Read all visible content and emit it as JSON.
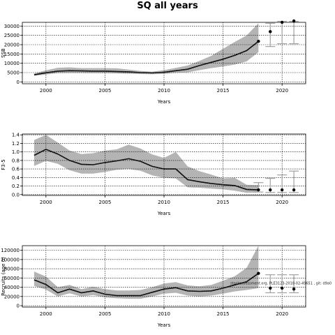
{
  "title": "SQ all years",
  "chart_data": [
    {
      "type": "line",
      "ylabel": "SSB",
      "xlabel": "Years",
      "xlim": [
        1998,
        2022
      ],
      "ylim": [
        -1000,
        32000
      ],
      "xticks": [
        2000,
        2005,
        2010,
        2015,
        2020
      ],
      "yticks": [
        0,
        5000,
        10000,
        15000,
        20000,
        25000,
        30000
      ],
      "grid": true,
      "series": [
        {
          "role": "median",
          "x": [
            1999,
            2000,
            2001,
            2002,
            2003,
            2004,
            2005,
            2006,
            2007,
            2008,
            2009,
            2010,
            2011,
            2012,
            2013,
            2014,
            2015,
            2016,
            2017,
            2018
          ],
          "values": [
            3800,
            4900,
            5800,
            6000,
            5900,
            5800,
            5800,
            5600,
            5400,
            5000,
            4800,
            5200,
            6000,
            6800,
            8800,
            10500,
            12200,
            14300,
            16800,
            21800
          ]
        },
        {
          "role": "ci_upper",
          "x": [
            1999,
            2000,
            2001,
            2002,
            2003,
            2004,
            2005,
            2006,
            2007,
            2008,
            2009,
            2010,
            2011,
            2012,
            2013,
            2014,
            2015,
            2016,
            2017,
            2018
          ],
          "values": [
            4500,
            6200,
            7600,
            7800,
            7400,
            7400,
            7400,
            7300,
            6600,
            5900,
            5500,
            6300,
            7500,
            8800,
            11300,
            14000,
            17800,
            21500,
            25000,
            31500
          ]
        },
        {
          "role": "ci_lower",
          "x": [
            1999,
            2000,
            2001,
            2002,
            2003,
            2004,
            2005,
            2006,
            2007,
            2008,
            2009,
            2010,
            2011,
            2012,
            2013,
            2014,
            2015,
            2016,
            2017,
            2018
          ],
          "values": [
            3300,
            4000,
            4700,
            4800,
            4800,
            4700,
            4700,
            4600,
            4400,
            4200,
            4100,
            4300,
            4900,
            5100,
            6300,
            7400,
            8300,
            9300,
            11000,
            16000
          ]
        }
      ],
      "points": [
        {
          "x": 2018,
          "y": 21800
        },
        {
          "x": 2019,
          "y": 27000,
          "low": 19000,
          "high": 31500
        },
        {
          "x": 2020,
          "y": 32000,
          "low": 20500,
          "high": 32500
        },
        {
          "x": 2021,
          "y": 33000,
          "low": 20500,
          "high": 32500
        }
      ]
    },
    {
      "type": "line",
      "ylabel": "F3-5",
      "xlabel": "Years",
      "xlim": [
        1998,
        2022
      ],
      "ylim": [
        -0.02,
        1.42
      ],
      "xticks": [
        2000,
        2005,
        2010,
        2015,
        2020
      ],
      "yticks": [
        0.0,
        0.2,
        0.4,
        0.6,
        0.8,
        1.0,
        1.2,
        1.4
      ],
      "grid": true,
      "series": [
        {
          "role": "median",
          "x": [
            1999,
            2000,
            2001,
            2002,
            2003,
            2004,
            2005,
            2006,
            2007,
            2008,
            2009,
            2010,
            2011,
            2012,
            2013,
            2014,
            2015,
            2016,
            2017,
            2018
          ],
          "values": [
            0.92,
            1.06,
            0.95,
            0.8,
            0.71,
            0.7,
            0.75,
            0.79,
            0.84,
            0.78,
            0.66,
            0.6,
            0.6,
            0.35,
            0.3,
            0.26,
            0.23,
            0.21,
            0.12,
            0.11
          ]
        },
        {
          "role": "ci_upper",
          "x": [
            1999,
            2000,
            2001,
            2002,
            2003,
            2004,
            2005,
            2006,
            2007,
            2008,
            2009,
            2010,
            2011,
            2012,
            2013,
            2014,
            2015,
            2016,
            2017,
            2018
          ],
          "values": [
            1.28,
            1.4,
            1.22,
            1.03,
            0.95,
            0.97,
            1.03,
            1.06,
            1.17,
            1.08,
            0.94,
            0.86,
            1.0,
            0.66,
            0.55,
            0.47,
            0.38,
            0.39,
            0.23,
            0.22
          ]
        },
        {
          "role": "ci_lower",
          "x": [
            1999,
            2000,
            2001,
            2002,
            2003,
            2004,
            2005,
            2006,
            2007,
            2008,
            2009,
            2010,
            2011,
            2012,
            2013,
            2014,
            2015,
            2016,
            2017,
            2018
          ],
          "values": [
            0.67,
            0.79,
            0.72,
            0.57,
            0.49,
            0.49,
            0.53,
            0.58,
            0.6,
            0.56,
            0.45,
            0.39,
            0.38,
            0.17,
            0.16,
            0.14,
            0.12,
            0.09,
            0.04,
            0.05
          ]
        }
      ],
      "points": [
        {
          "x": 2018,
          "y": 0.11,
          "low": 0.06,
          "high": 0.28
        },
        {
          "x": 2019,
          "y": 0.11,
          "low": 0.05,
          "high": 0.38
        },
        {
          "x": 2020,
          "y": 0.11,
          "low": 0.05,
          "high": 0.46
        },
        {
          "x": 2021,
          "y": 0.11,
          "low": 0.05,
          "high": 0.55
        }
      ]
    },
    {
      "type": "line",
      "ylabel": "Recruits (age 0)",
      "xlabel": "Years",
      "xlim": [
        1998,
        2022
      ],
      "ylim": [
        -3000,
        130000
      ],
      "xticks": [
        2000,
        2005,
        2010,
        2015,
        2020
      ],
      "yticks": [
        0,
        20000,
        40000,
        60000,
        80000,
        100000,
        120000
      ],
      "grid": true,
      "annotation": "stockassessment.org, PLE3123-2018-02-49651 , git: d9a0",
      "series": [
        {
          "role": "median",
          "x": [
            1999,
            2000,
            2001,
            2002,
            2003,
            2004,
            2005,
            2006,
            2007,
            2008,
            2009,
            2010,
            2011,
            2012,
            2013,
            2014,
            2015,
            2016,
            2017,
            2018
          ],
          "values": [
            56000,
            46000,
            28000,
            36000,
            28000,
            32000,
            25000,
            22000,
            22000,
            22000,
            29000,
            36000,
            39000,
            32000,
            31000,
            32000,
            38000,
            45000,
            52000,
            70000
          ]
        },
        {
          "role": "ci_upper",
          "x": [
            1999,
            2000,
            2001,
            2002,
            2003,
            2004,
            2005,
            2006,
            2007,
            2008,
            2009,
            2010,
            2011,
            2012,
            2013,
            2014,
            2015,
            2016,
            2017,
            2018
          ],
          "values": [
            74000,
            63000,
            40000,
            45000,
            36000,
            41000,
            36000,
            33000,
            33000,
            34000,
            40000,
            48000,
            51000,
            44000,
            42000,
            45000,
            54000,
            64000,
            82000,
            130000
          ]
        },
        {
          "role": "ci_lower",
          "x": [
            1999,
            2000,
            2001,
            2002,
            2003,
            2004,
            2005,
            2006,
            2007,
            2008,
            2009,
            2010,
            2011,
            2012,
            2013,
            2014,
            2015,
            2016,
            2017,
            2018
          ],
          "values": [
            43000,
            35000,
            20000,
            27000,
            20000,
            23000,
            18000,
            16000,
            15000,
            15000,
            20000,
            26000,
            28000,
            22000,
            20000,
            22000,
            26000,
            31000,
            34000,
            38000
          ]
        }
      ],
      "points": [
        {
          "x": 2018,
          "y": 70000
        },
        {
          "x": 2019,
          "y": 38000,
          "low": 28000,
          "high": 67000
        },
        {
          "x": 2020,
          "y": 38000,
          "low": 28000,
          "high": 67000
        },
        {
          "x": 2021,
          "y": 36000,
          "low": 28000,
          "high": 67000
        }
      ]
    }
  ]
}
